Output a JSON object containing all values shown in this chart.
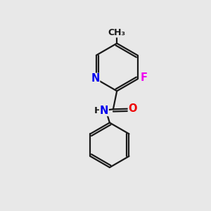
{
  "background_color": "#e8e8e8",
  "bond_color": "#1a1a1a",
  "atom_colors": {
    "N": "#0000ee",
    "O": "#ee0000",
    "F": "#ee00ee",
    "Cl": "#00bb00",
    "C": "#1a1a1a",
    "H": "#1a1a1a"
  },
  "figsize": [
    3.0,
    3.0
  ],
  "dpi": 100,
  "lw": 1.6
}
